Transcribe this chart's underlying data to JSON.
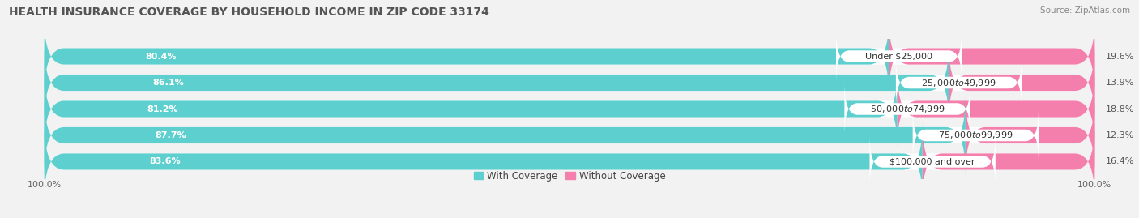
{
  "title": "HEALTH INSURANCE COVERAGE BY HOUSEHOLD INCOME IN ZIP CODE 33174",
  "source": "Source: ZipAtlas.com",
  "categories": [
    "Under $25,000",
    "$25,000 to $49,999",
    "$50,000 to $74,999",
    "$75,000 to $99,999",
    "$100,000 and over"
  ],
  "with_coverage": [
    80.4,
    86.1,
    81.2,
    87.7,
    83.6
  ],
  "without_coverage": [
    19.6,
    13.9,
    18.8,
    12.3,
    16.4
  ],
  "color_with": "#5ECFCF",
  "color_without": "#F47FAD",
  "background_color": "#f2f2f2",
  "title_fontsize": 10,
  "label_fontsize": 8,
  "legend_fontsize": 8.5,
  "axis_label_fontsize": 8
}
